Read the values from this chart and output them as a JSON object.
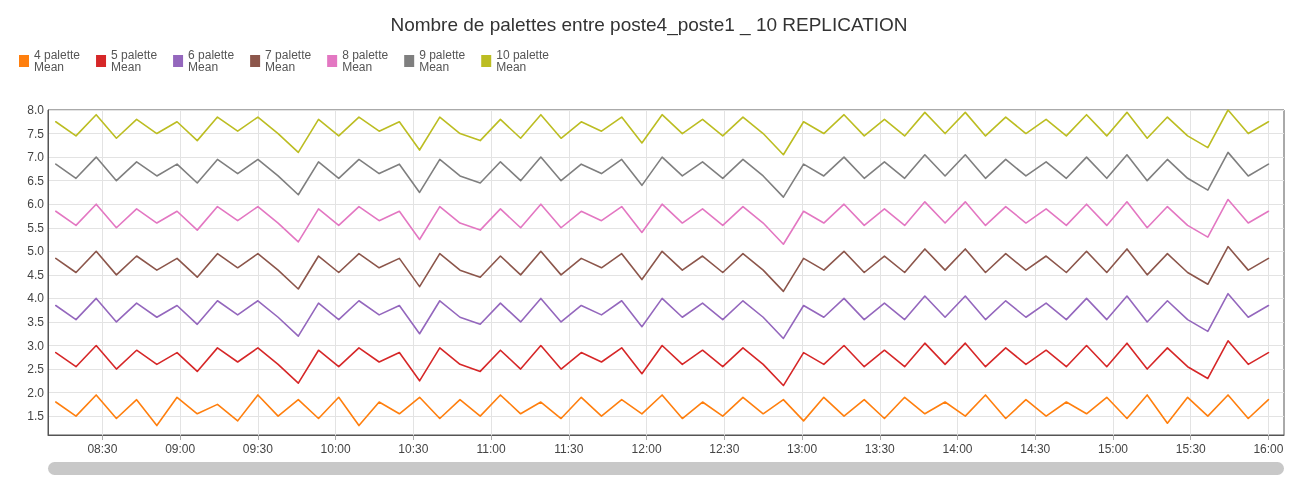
{
  "chart_data": {
    "type": "line",
    "title": "Nombre de palettes entre poste4_poste1 _ 10 REPLICATION",
    "x": [
      8.2,
      8.33,
      8.46,
      8.59,
      8.72,
      8.85,
      8.98,
      9.11,
      9.24,
      9.37,
      9.5,
      9.63,
      9.76,
      9.89,
      10.02,
      10.15,
      10.28,
      10.41,
      10.54,
      10.67,
      10.8,
      10.93,
      11.06,
      11.19,
      11.32,
      11.45,
      11.58,
      11.71,
      11.84,
      11.97,
      12.1,
      12.23,
      12.36,
      12.49,
      12.62,
      12.75,
      12.88,
      13.01,
      13.14,
      13.27,
      13.4,
      13.53,
      13.66,
      13.79,
      13.92,
      14.05,
      14.18,
      14.31,
      14.44,
      14.57,
      14.7,
      14.83,
      14.96,
      15.09,
      15.22,
      15.35,
      15.48,
      15.61,
      15.74,
      15.87,
      16.0
    ],
    "series": [
      {
        "name": "4 palette\nMean",
        "color": "#ff7f0e",
        "values": [
          1.8,
          1.5,
          1.95,
          1.45,
          1.85,
          1.3,
          1.9,
          1.55,
          1.75,
          1.4,
          1.95,
          1.5,
          1.85,
          1.45,
          1.9,
          1.3,
          1.8,
          1.55,
          1.9,
          1.45,
          1.85,
          1.5,
          1.95,
          1.55,
          1.8,
          1.45,
          1.9,
          1.5,
          1.85,
          1.55,
          1.95,
          1.45,
          1.8,
          1.5,
          1.9,
          1.55,
          1.85,
          1.4,
          1.9,
          1.5,
          1.85,
          1.45,
          1.9,
          1.55,
          1.8,
          1.5,
          1.95,
          1.45,
          1.85,
          1.5,
          1.8,
          1.55,
          1.9,
          1.45,
          1.95,
          1.35,
          1.9,
          1.5,
          1.95,
          1.45,
          1.85
        ]
      },
      {
        "name": "5 palette\nMean",
        "color": "#d62728",
        "values": [
          2.85,
          2.55,
          3.0,
          2.5,
          2.9,
          2.6,
          2.85,
          2.45,
          2.95,
          2.65,
          2.95,
          2.6,
          2.2,
          2.9,
          2.55,
          2.95,
          2.65,
          2.85,
          2.25,
          2.95,
          2.6,
          2.45,
          2.9,
          2.5,
          3.0,
          2.5,
          2.85,
          2.65,
          2.95,
          2.4,
          3.0,
          2.6,
          2.9,
          2.55,
          2.95,
          2.6,
          2.15,
          2.85,
          2.6,
          3.0,
          2.55,
          2.9,
          2.55,
          3.05,
          2.6,
          3.05,
          2.55,
          2.95,
          2.6,
          2.9,
          2.55,
          3.0,
          2.55,
          3.05,
          2.5,
          2.95,
          2.55,
          2.3,
          3.1,
          2.6,
          2.85
        ]
      },
      {
        "name": "6 palette\nMean",
        "color": "#9467bd",
        "values": [
          3.85,
          3.55,
          4.0,
          3.5,
          3.9,
          3.6,
          3.85,
          3.45,
          3.95,
          3.65,
          3.95,
          3.6,
          3.2,
          3.9,
          3.55,
          3.95,
          3.65,
          3.85,
          3.25,
          3.95,
          3.6,
          3.45,
          3.9,
          3.5,
          4.0,
          3.5,
          3.85,
          3.65,
          3.95,
          3.4,
          4.0,
          3.6,
          3.9,
          3.55,
          3.95,
          3.6,
          3.15,
          3.85,
          3.6,
          4.0,
          3.55,
          3.9,
          3.55,
          4.05,
          3.6,
          4.05,
          3.55,
          3.95,
          3.6,
          3.9,
          3.55,
          4.0,
          3.55,
          4.05,
          3.5,
          3.95,
          3.55,
          3.3,
          4.1,
          3.6,
          3.85
        ]
      },
      {
        "name": "7 palette\nMean",
        "color": "#8c564b",
        "values": [
          4.85,
          4.55,
          5.0,
          4.5,
          4.9,
          4.6,
          4.85,
          4.45,
          4.95,
          4.65,
          4.95,
          4.6,
          4.2,
          4.9,
          4.55,
          4.95,
          4.65,
          4.85,
          4.25,
          4.95,
          4.6,
          4.45,
          4.9,
          4.5,
          5.0,
          4.5,
          4.85,
          4.65,
          4.95,
          4.4,
          5.0,
          4.6,
          4.9,
          4.55,
          4.95,
          4.6,
          4.15,
          4.85,
          4.6,
          5.0,
          4.55,
          4.9,
          4.55,
          5.05,
          4.6,
          5.05,
          4.55,
          4.95,
          4.6,
          4.9,
          4.55,
          5.0,
          4.55,
          5.05,
          4.5,
          4.95,
          4.55,
          4.3,
          5.1,
          4.6,
          4.85
        ]
      },
      {
        "name": "8 palette\nMean",
        "color": "#e377c2",
        "values": [
          5.85,
          5.55,
          6.0,
          5.5,
          5.9,
          5.6,
          5.85,
          5.45,
          5.95,
          5.65,
          5.95,
          5.6,
          5.2,
          5.9,
          5.55,
          5.95,
          5.65,
          5.85,
          5.25,
          5.95,
          5.6,
          5.45,
          5.9,
          5.5,
          6.0,
          5.5,
          5.85,
          5.65,
          5.95,
          5.4,
          6.0,
          5.6,
          5.9,
          5.55,
          5.95,
          5.6,
          5.15,
          5.85,
          5.6,
          6.0,
          5.55,
          5.9,
          5.55,
          6.05,
          5.6,
          6.05,
          5.55,
          5.95,
          5.6,
          5.9,
          5.55,
          6.0,
          5.55,
          6.05,
          5.5,
          5.95,
          5.55,
          5.3,
          6.1,
          5.6,
          5.85
        ]
      },
      {
        "name": "9 palette\nMean",
        "color": "#7f7f7f",
        "values": [
          6.85,
          6.55,
          7.0,
          6.5,
          6.9,
          6.6,
          6.85,
          6.45,
          6.95,
          6.65,
          6.95,
          6.6,
          6.2,
          6.9,
          6.55,
          6.95,
          6.65,
          6.85,
          6.25,
          6.95,
          6.6,
          6.45,
          6.9,
          6.5,
          7.0,
          6.5,
          6.85,
          6.65,
          6.95,
          6.4,
          7.0,
          6.6,
          6.9,
          6.55,
          6.95,
          6.6,
          6.15,
          6.85,
          6.6,
          7.0,
          6.55,
          6.9,
          6.55,
          7.05,
          6.6,
          7.05,
          6.55,
          6.95,
          6.6,
          6.9,
          6.55,
          7.0,
          6.55,
          7.05,
          6.5,
          6.95,
          6.55,
          6.3,
          7.1,
          6.6,
          6.85
        ]
      },
      {
        "name": "10 palette\nMean",
        "color": "#bcbd22",
        "values": [
          7.75,
          7.45,
          7.9,
          7.4,
          7.8,
          7.5,
          7.75,
          7.35,
          7.85,
          7.55,
          7.85,
          7.5,
          7.1,
          7.8,
          7.45,
          7.85,
          7.55,
          7.75,
          7.15,
          7.85,
          7.5,
          7.35,
          7.8,
          7.4,
          7.9,
          7.4,
          7.75,
          7.55,
          7.85,
          7.3,
          7.9,
          7.5,
          7.8,
          7.45,
          7.85,
          7.5,
          7.05,
          7.75,
          7.5,
          7.9,
          7.45,
          7.8,
          7.45,
          7.95,
          7.5,
          7.95,
          7.45,
          7.85,
          7.5,
          7.8,
          7.45,
          7.9,
          7.45,
          7.95,
          7.4,
          7.85,
          7.45,
          7.2,
          8.0,
          7.5,
          7.75
        ]
      }
    ],
    "xlim": [
      8.15,
      16.1
    ],
    "xticks": [
      {
        "value": 8.5,
        "label": "08:30"
      },
      {
        "value": 9,
        "label": "09:00"
      },
      {
        "value": 9.5,
        "label": "09:30"
      },
      {
        "value": 10,
        "label": "10:00"
      },
      {
        "value": 10.5,
        "label": "10:30"
      },
      {
        "value": 11,
        "label": "11:00"
      },
      {
        "value": 11.5,
        "label": "11:30"
      },
      {
        "value": 12,
        "label": "12:00"
      },
      {
        "value": 12.5,
        "label": "12:30"
      },
      {
        "value": 13,
        "label": "13:00"
      },
      {
        "value": 13.5,
        "label": "13:30"
      },
      {
        "value": 14,
        "label": "14:00"
      },
      {
        "value": 14.5,
        "label": "14:30"
      },
      {
        "value": 15,
        "label": "15:00"
      },
      {
        "value": 15.5,
        "label": "15:30"
      },
      {
        "value": 16,
        "label": "16:00"
      }
    ],
    "ylim": [
      1.1,
      8.0
    ],
    "yticks": [
      {
        "value": 1.5,
        "label": "1.5"
      },
      {
        "value": 2,
        "label": "2.0"
      },
      {
        "value": 2.5,
        "label": "2.5"
      },
      {
        "value": 3,
        "label": "3.0"
      },
      {
        "value": 3.5,
        "label": "3.5"
      },
      {
        "value": 4,
        "label": "4.0"
      },
      {
        "value": 4.5,
        "label": "4.5"
      },
      {
        "value": 5,
        "label": "5.0"
      },
      {
        "value": 5.5,
        "label": "5.5"
      },
      {
        "value": 6,
        "label": "6.0"
      },
      {
        "value": 6.5,
        "label": "6.5"
      },
      {
        "value": 7,
        "label": "7.0"
      },
      {
        "value": 7.5,
        "label": "7.5"
      },
      {
        "value": 8,
        "label": "8.0"
      }
    ],
    "grid": true,
    "legend": "top left",
    "marker": "none",
    "line_style": "solid"
  }
}
